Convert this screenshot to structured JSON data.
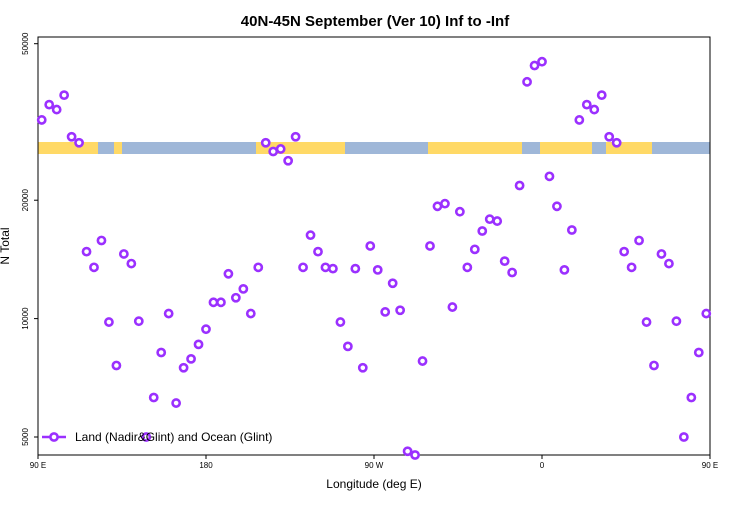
{
  "chart_data": {
    "type": "scatter",
    "title": "40N-45N September (Ver 10)   Inf to -Inf",
    "xlabel": "Longitude (deg E)",
    "ylabel": "N Total",
    "y_scale": "log",
    "xlim": [
      90,
      450
    ],
    "ylim": [
      4500,
      52000
    ],
    "x_ticks": [
      {
        "value": 90,
        "label": "90 E"
      },
      {
        "value": 180,
        "label": "180"
      },
      {
        "value": 270,
        "label": "90 W"
      },
      {
        "value": 360,
        "label": "0"
      },
      {
        "value": 450,
        "label": "90 E"
      },
      {
        "value": 540,
        "label": "180"
      }
    ],
    "y_ticks": [
      {
        "value": 5000,
        "label": "5000"
      },
      {
        "value": 10000,
        "label": "10000"
      },
      {
        "value": 20000,
        "label": "20000"
      },
      {
        "value": 50000,
        "label": "50000"
      }
    ],
    "grid": false,
    "legend": {
      "position": "bottom-left",
      "entries": [
        "Land (Nadir&Glint) and Ocean (Glint)"
      ]
    },
    "colors": {
      "series": "#9b30ff",
      "land": "#ffd966",
      "ocean": "#9fb7d8"
    },
    "surface_strip": {
      "label": "land/ocean map strip"
    },
    "series": [
      {
        "name": "Land (Nadir&Glint) and Ocean (Glint)",
        "points": [
          [
            92,
            32000
          ],
          [
            96,
            35000
          ],
          [
            100,
            34000
          ],
          [
            104,
            37000
          ],
          [
            108,
            29000
          ],
          [
            112,
            28000
          ],
          [
            116,
            14800
          ],
          [
            120,
            13500
          ],
          [
            124,
            15800
          ],
          [
            128,
            9800
          ],
          [
            132,
            7600
          ],
          [
            136,
            14600
          ],
          [
            140,
            13800
          ],
          [
            144,
            9850
          ],
          [
            148,
            5000
          ],
          [
            152,
            6300
          ],
          [
            156,
            8200
          ],
          [
            160,
            10300
          ],
          [
            164,
            6100
          ],
          [
            168,
            7500
          ],
          [
            172,
            7900
          ],
          [
            176,
            8600
          ],
          [
            180,
            9400
          ],
          [
            184,
            11000
          ],
          [
            188,
            11000
          ],
          [
            192,
            13000
          ],
          [
            196,
            11300
          ],
          [
            200,
            11900
          ],
          [
            204,
            10300
          ],
          [
            208,
            13500
          ],
          [
            212,
            28000
          ],
          [
            216,
            26600
          ],
          [
            220,
            27000
          ],
          [
            224,
            25200
          ],
          [
            228,
            29000
          ],
          [
            232,
            13500
          ],
          [
            236,
            16300
          ],
          [
            240,
            14800
          ],
          [
            244,
            13500
          ],
          [
            248,
            13400
          ],
          [
            252,
            9800
          ],
          [
            256,
            8500
          ],
          [
            260,
            13400
          ],
          [
            264,
            7500
          ],
          [
            268,
            15300
          ],
          [
            272,
            13300
          ],
          [
            276,
            10400
          ],
          [
            280,
            12300
          ],
          [
            284,
            10500
          ],
          [
            288,
            4600
          ],
          [
            292,
            4500
          ],
          [
            296,
            7800
          ],
          [
            300,
            15300
          ],
          [
            304,
            19300
          ],
          [
            308,
            19600
          ],
          [
            312,
            10700
          ],
          [
            316,
            18700
          ],
          [
            320,
            13500
          ],
          [
            324,
            15000
          ],
          [
            328,
            16700
          ],
          [
            332,
            17900
          ],
          [
            336,
            17700
          ],
          [
            340,
            14000
          ],
          [
            344,
            13100
          ],
          [
            348,
            21800
          ],
          [
            352,
            40000
          ],
          [
            356,
            44000
          ],
          [
            360,
            45000
          ],
          [
            364,
            23000
          ],
          [
            368,
            19300
          ],
          [
            372,
            13300
          ],
          [
            376,
            16800
          ],
          [
            380,
            32000
          ],
          [
            384,
            35000
          ],
          [
            388,
            34000
          ],
          [
            392,
            37000
          ],
          [
            396,
            29000
          ],
          [
            400,
            28000
          ],
          [
            404,
            14800
          ],
          [
            408,
            13500
          ],
          [
            412,
            15800
          ],
          [
            416,
            9800
          ],
          [
            420,
            7600
          ],
          [
            424,
            14600
          ],
          [
            428,
            13800
          ],
          [
            432,
            9850
          ],
          [
            436,
            5000
          ],
          [
            440,
            6300
          ],
          [
            444,
            8200
          ],
          [
            448,
            10300
          ]
        ]
      }
    ]
  }
}
